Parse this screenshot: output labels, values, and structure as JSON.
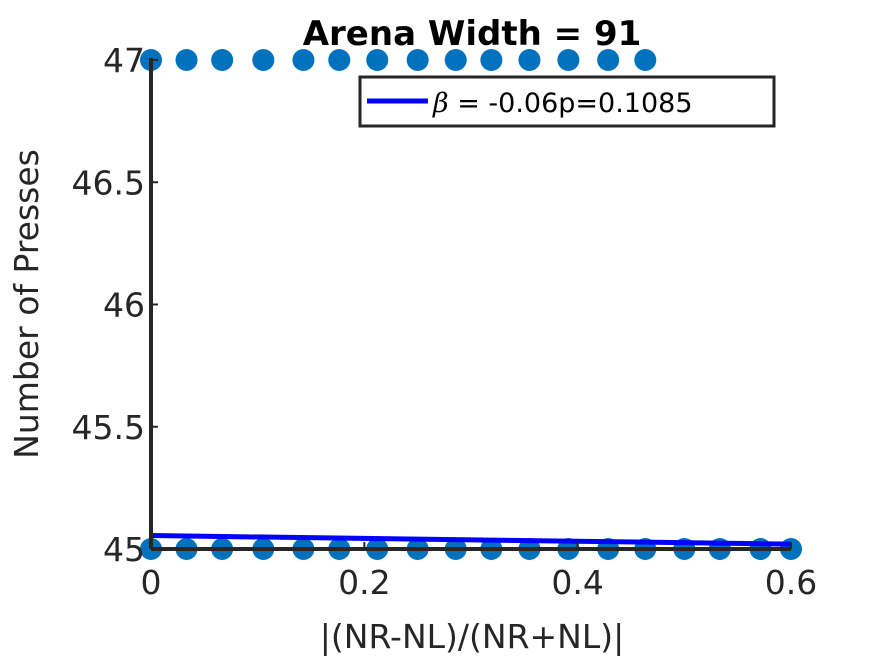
{
  "chart_data": {
    "type": "scatter",
    "title": "Arena Width =  91",
    "xlabel": "|(NR-NL)/(NR+NL)|",
    "ylabel": "Number of Presses",
    "xlim": [
      0,
      0.6
    ],
    "ylim": [
      45,
      47
    ],
    "xticks": [
      "0",
      "0.2",
      "0.4",
      "0.6"
    ],
    "yticks": [
      "45",
      "45.5",
      "46",
      "46.5",
      "47"
    ],
    "grid": false,
    "legend_position": "top-right",
    "colors": {
      "points": "#0072BD",
      "fit": "#0000FF",
      "axes": "#262626"
    },
    "series": [
      {
        "type": "scatter",
        "points": [
          {
            "x": 0.0,
            "y": 47
          },
          {
            "x": 0.0333,
            "y": 47
          },
          {
            "x": 0.0667,
            "y": 47
          },
          {
            "x": 0.1053,
            "y": 47
          },
          {
            "x": 0.1429,
            "y": 47
          },
          {
            "x": 0.1765,
            "y": 47
          },
          {
            "x": 0.2121,
            "y": 47
          },
          {
            "x": 0.25,
            "y": 47
          },
          {
            "x": 0.2857,
            "y": 47
          },
          {
            "x": 0.3191,
            "y": 47
          },
          {
            "x": 0.3548,
            "y": 47
          },
          {
            "x": 0.3913,
            "y": 47
          },
          {
            "x": 0.4286,
            "y": 47
          },
          {
            "x": 0.4634,
            "y": 47
          },
          {
            "x": 0.0,
            "y": 45
          },
          {
            "x": 0.0333,
            "y": 45
          },
          {
            "x": 0.0667,
            "y": 45
          },
          {
            "x": 0.1053,
            "y": 45
          },
          {
            "x": 0.1429,
            "y": 45
          },
          {
            "x": 0.1765,
            "y": 45
          },
          {
            "x": 0.2121,
            "y": 45
          },
          {
            "x": 0.25,
            "y": 45
          },
          {
            "x": 0.2857,
            "y": 45
          },
          {
            "x": 0.3191,
            "y": 45
          },
          {
            "x": 0.3548,
            "y": 45
          },
          {
            "x": 0.3913,
            "y": 45
          },
          {
            "x": 0.4286,
            "y": 45
          },
          {
            "x": 0.4634,
            "y": 45
          },
          {
            "x": 0.5,
            "y": 45
          },
          {
            "x": 0.5333,
            "y": 45
          },
          {
            "x": 0.5714,
            "y": 45
          },
          {
            "x": 0.6,
            "y": 45
          }
        ]
      },
      {
        "type": "line",
        "name": "β =  -0.06p=0.1085",
        "points": [
          {
            "x": 0.0,
            "y": 45.055
          },
          {
            "x": 0.6,
            "y": 45.02
          }
        ]
      }
    ],
    "legend": {
      "symbol": "β",
      "text": " =  -0.06p=0.1085"
    }
  }
}
